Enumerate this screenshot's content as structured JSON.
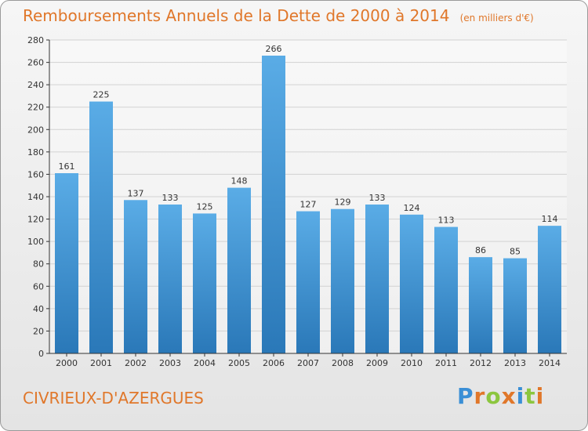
{
  "header": {
    "title": "Remboursements Annuels de la Dette de 2000 à 2014",
    "unit": "(en milliers d'€)"
  },
  "footer": {
    "commune": "CIVRIEUX-D'AZERGUES",
    "logo_text": "Proxiti",
    "logo_letters": [
      {
        "ch": "P",
        "color": "#3a8fd6"
      },
      {
        "ch": "r",
        "color": "#e0772a"
      },
      {
        "ch": "o",
        "color": "#8cc63f"
      },
      {
        "ch": "x",
        "color": "#e0772a"
      },
      {
        "ch": "i",
        "color": "#3a8fd6"
      },
      {
        "ch": "t",
        "color": "#8cc63f"
      },
      {
        "ch": "i",
        "color": "#e0772a"
      }
    ]
  },
  "colors": {
    "accent": "#e0772a",
    "bar_top": "#5aace6",
    "bar_bottom": "#2a78b8"
  },
  "chart_data": {
    "type": "bar",
    "categories": [
      "2000",
      "2001",
      "2002",
      "2003",
      "2004",
      "2005",
      "2006",
      "2007",
      "2008",
      "2009",
      "2010",
      "2011",
      "2012",
      "2013",
      "2014"
    ],
    "values": [
      161,
      225,
      137,
      133,
      125,
      148,
      266,
      127,
      129,
      133,
      124,
      113,
      86,
      85,
      114
    ],
    "ylim": [
      0,
      280
    ],
    "yticks": [
      0,
      20,
      40,
      60,
      80,
      100,
      120,
      140,
      160,
      180,
      200,
      220,
      240,
      260,
      280
    ],
    "grid": true,
    "data_labels": true
  }
}
